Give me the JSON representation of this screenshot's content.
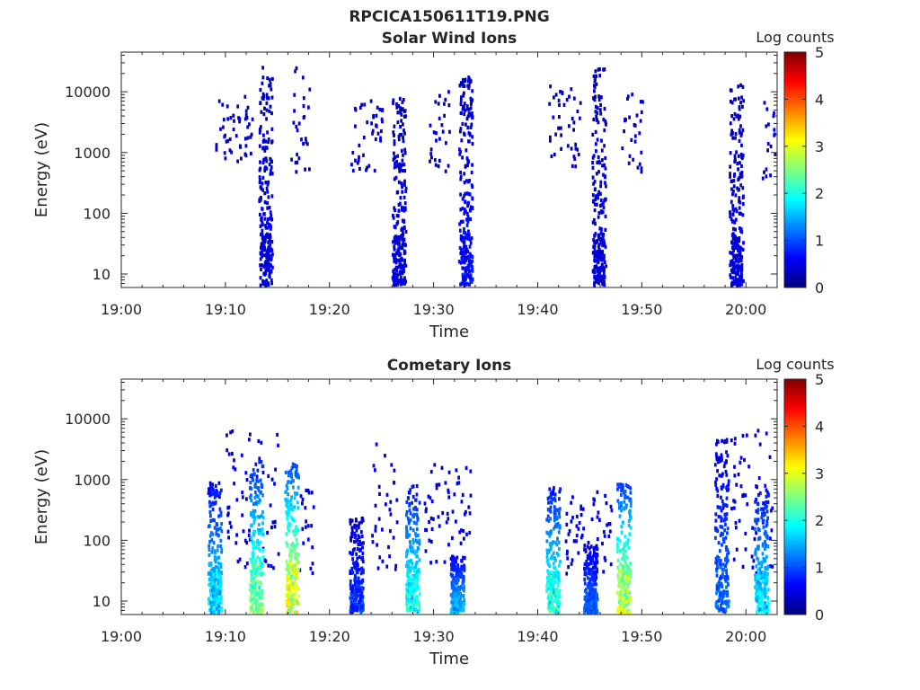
{
  "figure": {
    "title": "RPCICA150611T19.PNG"
  },
  "chart_data": [
    {
      "type": "heatmap",
      "title": "Solar Wind Ions",
      "xlabel": "Time",
      "ylabel": "Energy (eV)",
      "xlim": [
        "19:00",
        "20:03"
      ],
      "ylim": [
        6,
        45000
      ],
      "yscale": "log",
      "x_ticks": [
        "19:00",
        "19:10",
        "19:20",
        "19:30",
        "19:40",
        "19:50",
        "20:00"
      ],
      "y_ticks": [
        "10",
        "100",
        "1000",
        "10000"
      ],
      "y_tick_values": [
        10,
        100,
        1000,
        10000
      ],
      "colorbar": {
        "label": "Log counts",
        "range": [
          0,
          5
        ],
        "ticks": [
          "0",
          "1",
          "2",
          "3",
          "4",
          "5"
        ],
        "colormap": "jet"
      },
      "bursts": [
        {
          "time_min": 13.8,
          "emin": 6,
          "emax": 28000,
          "core_level": 0.4
        },
        {
          "time_min": 26.6,
          "emin": 6,
          "emax": 9000,
          "core_level": 0.4
        },
        {
          "time_min": 33.0,
          "emin": 6,
          "emax": 22000,
          "core_level": 0.6
        },
        {
          "time_min": 45.8,
          "emin": 6,
          "emax": 26000,
          "core_level": 0.4
        },
        {
          "time_min": 59.0,
          "emin": 6,
          "emax": 15000,
          "core_level": 0.4
        }
      ],
      "scattered_counts": [
        {
          "t_min": 9.0,
          "t_max": 12.5,
          "emin": 600,
          "emax": 9000,
          "level": 0.2
        },
        {
          "t_min": 16.0,
          "t_max": 18.0,
          "emin": 500,
          "emax": 28000,
          "level": 0.2
        },
        {
          "t_min": 22.0,
          "t_max": 25.0,
          "emin": 500,
          "emax": 10000,
          "level": 0.2
        },
        {
          "t_min": 29.5,
          "t_max": 31.5,
          "emin": 500,
          "emax": 12000,
          "level": 0.2
        },
        {
          "t_min": 41.0,
          "t_max": 44.0,
          "emin": 600,
          "emax": 15000,
          "level": 0.2
        },
        {
          "t_min": 48.0,
          "t_max": 50.0,
          "emin": 500,
          "emax": 10000,
          "level": 0.2
        },
        {
          "t_min": 61.5,
          "t_max": 63.0,
          "emin": 400,
          "emax": 9000,
          "level": 0.2
        }
      ]
    },
    {
      "type": "heatmap",
      "title": "Cometary Ions",
      "xlabel": "Time",
      "ylabel": "Energy (eV)",
      "xlim": [
        "19:00",
        "20:03"
      ],
      "ylim": [
        6,
        45000
      ],
      "yscale": "log",
      "x_ticks": [
        "19:00",
        "19:10",
        "19:20",
        "19:30",
        "19:40",
        "19:50",
        "20:00"
      ],
      "y_ticks": [
        "10",
        "100",
        "1000",
        "10000"
      ],
      "y_tick_values": [
        10,
        100,
        1000,
        10000
      ],
      "colorbar": {
        "label": "Log counts",
        "range": [
          0,
          5
        ],
        "ticks": [
          "0",
          "1",
          "2",
          "3",
          "4",
          "5"
        ],
        "colormap": "jet"
      },
      "bursts": [
        {
          "time_min": 8.9,
          "emin": 6,
          "emax": 1000,
          "core_level": 1.6
        },
        {
          "time_min": 12.9,
          "emin": 6,
          "emax": 2300,
          "core_level": 2.2
        },
        {
          "time_min": 16.3,
          "emin": 6,
          "emax": 2000,
          "core_level": 2.8
        },
        {
          "time_min": 22.5,
          "emin": 6,
          "emax": 250,
          "core_level": 0.8
        },
        {
          "time_min": 27.9,
          "emin": 6,
          "emax": 900,
          "core_level": 1.8
        },
        {
          "time_min": 32.2,
          "emin": 6,
          "emax": 60,
          "core_level": 1.4
        },
        {
          "time_min": 41.4,
          "emin": 6,
          "emax": 800,
          "core_level": 1.9
        },
        {
          "time_min": 45.0,
          "emin": 6,
          "emax": 100,
          "core_level": 1.0
        },
        {
          "time_min": 48.2,
          "emin": 6,
          "emax": 900,
          "core_level": 2.6
        },
        {
          "time_min": 57.6,
          "emin": 6,
          "emax": 5000,
          "core_level": 1.0
        },
        {
          "time_min": 61.4,
          "emin": 6,
          "emax": 900,
          "core_level": 1.6
        }
      ],
      "scattered_counts": [
        {
          "t_min": 10.0,
          "t_max": 15.0,
          "emin": 30,
          "emax": 7500,
          "level": 0.3
        },
        {
          "t_min": 17.0,
          "t_max": 18.5,
          "emin": 30,
          "emax": 800,
          "level": 0.3
        },
        {
          "t_min": 24.0,
          "t_max": 26.5,
          "emin": 30,
          "emax": 5700,
          "level": 0.3
        },
        {
          "t_min": 29.0,
          "t_max": 33.5,
          "emin": 40,
          "emax": 2200,
          "level": 0.3
        },
        {
          "t_min": 42.5,
          "t_max": 47.0,
          "emin": 30,
          "emax": 700,
          "level": 0.3
        },
        {
          "t_min": 58.5,
          "t_max": 62.5,
          "emin": 30,
          "emax": 7000,
          "level": 0.3
        }
      ]
    }
  ]
}
